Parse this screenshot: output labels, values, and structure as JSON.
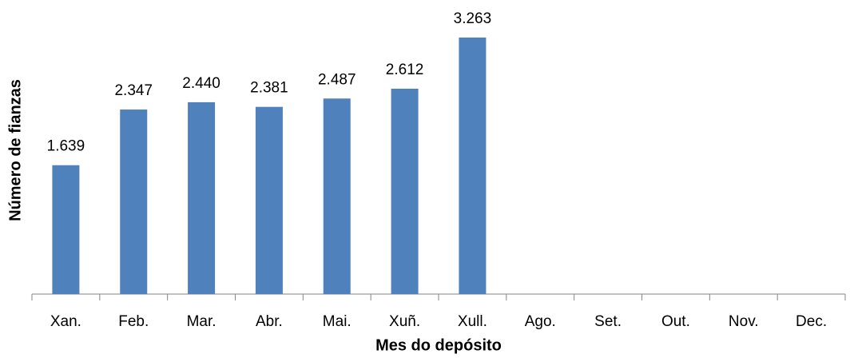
{
  "chart_data": {
    "type": "bar",
    "x_label": "Mes do depósito",
    "y_label": "Número de fianzas",
    "categories": [
      "Xan.",
      "Feb.",
      "Mar.",
      "Abr.",
      "Mai.",
      "Xuñ.",
      "Xull.",
      "Ago.",
      "Set.",
      "Out.",
      "Nov.",
      "Dec."
    ],
    "values": [
      1639,
      2347,
      2440,
      2381,
      2487,
      2612,
      3263,
      null,
      null,
      null,
      null,
      null
    ],
    "value_labels": [
      "1.639",
      "2.347",
      "2.440",
      "2.381",
      "2.487",
      "2.612",
      "3.263",
      null,
      null,
      null,
      null,
      null
    ],
    "color": "#4f81bd",
    "ylim": [
      0,
      3740
    ]
  }
}
